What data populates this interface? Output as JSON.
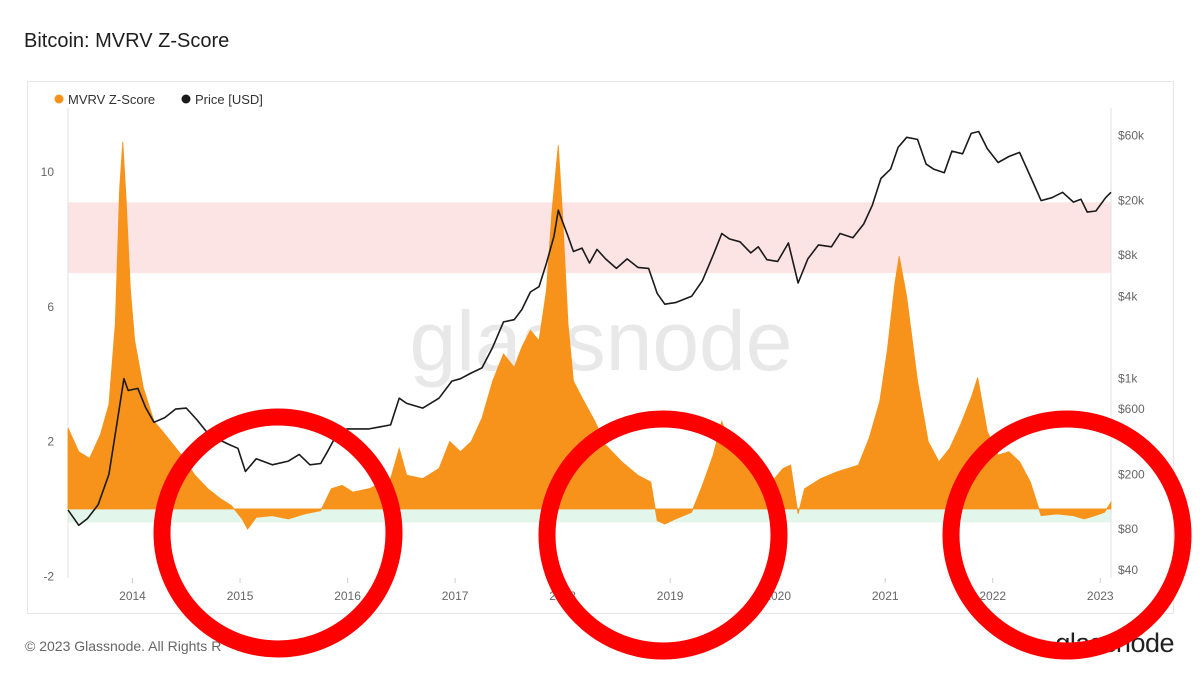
{
  "title": "Bitcoin: MVRV Z-Score",
  "watermark": "glassnode",
  "footer": {
    "copyright": "© 2023 Glassnode. All Rights R",
    "logo_text": "glassnode"
  },
  "colors": {
    "zscore": "#f7931a",
    "price": "#1a1a1a",
    "top_band": "#fde4e4",
    "bottom_band": "#e3f6ec",
    "annotation": "#ff0000",
    "axis_text": "#666666",
    "watermark": "#e8e8e8"
  },
  "chart_data": {
    "type": "area",
    "title": "Bitcoin: MVRV Z-Score",
    "legend": {
      "placement": "top-left",
      "entries": [
        {
          "name": "MVRV Z-Score",
          "color": "#f7931a"
        },
        {
          "name": "Price [USD]",
          "color": "#1a1a1a"
        }
      ]
    },
    "x_ticks": [
      "2014",
      "2015",
      "2016",
      "2017",
      "2018",
      "2019",
      "2020",
      "2021",
      "2022",
      "2023"
    ],
    "x_range": [
      2013.4,
      2023.1
    ],
    "y_left": {
      "ticks": [
        "10",
        "6",
        "2",
        "-2"
      ],
      "tick_values": [
        10,
        6,
        2,
        -2
      ],
      "range": [
        -2.05,
        11.9
      ]
    },
    "y_right": {
      "scale": "log",
      "ticks": [
        "$60k",
        "$20k",
        "$8k",
        "$4k",
        "$1k",
        "$600",
        "$200",
        "$80",
        "$40"
      ],
      "tick_values": [
        60000,
        20000,
        8000,
        4000,
        1000,
        600,
        200,
        80,
        40
      ],
      "range": [
        35,
        95000
      ]
    },
    "bands": [
      {
        "name": "top zone",
        "y_from": 7.0,
        "y_to": 9.1,
        "color": "#fde4e4"
      },
      {
        "name": "bottom zone",
        "y_from": -0.4,
        "y_to": 0.0,
        "color": "#e3f6ec"
      }
    ],
    "series": [
      {
        "name": "MVRV Z-Score",
        "type": "area",
        "points": [
          [
            2013.4,
            2.4
          ],
          [
            2013.5,
            1.7
          ],
          [
            2013.6,
            1.5
          ],
          [
            2013.7,
            2.2
          ],
          [
            2013.78,
            3.1
          ],
          [
            2013.84,
            5.5
          ],
          [
            2013.88,
            9.5
          ],
          [
            2013.91,
            10.9
          ],
          [
            2013.94,
            9.2
          ],
          [
            2013.98,
            6.5
          ],
          [
            2014.02,
            5.0
          ],
          [
            2014.1,
            3.6
          ],
          [
            2014.2,
            2.6
          ],
          [
            2014.28,
            2.3
          ],
          [
            2014.38,
            1.9
          ],
          [
            2014.48,
            1.5
          ],
          [
            2014.58,
            1.0
          ],
          [
            2014.7,
            0.6
          ],
          [
            2014.82,
            0.3
          ],
          [
            2014.92,
            0.1
          ],
          [
            2015.02,
            -0.3
          ],
          [
            2015.07,
            -0.6
          ],
          [
            2015.15,
            -0.25
          ],
          [
            2015.3,
            -0.2
          ],
          [
            2015.45,
            -0.3
          ],
          [
            2015.6,
            -0.15
          ],
          [
            2015.75,
            -0.05
          ],
          [
            2015.85,
            0.6
          ],
          [
            2015.95,
            0.7
          ],
          [
            2016.05,
            0.5
          ],
          [
            2016.2,
            0.6
          ],
          [
            2016.4,
            0.9
          ],
          [
            2016.48,
            1.8
          ],
          [
            2016.55,
            1.0
          ],
          [
            2016.7,
            0.9
          ],
          [
            2016.85,
            1.2
          ],
          [
            2016.95,
            2.0
          ],
          [
            2017.05,
            1.7
          ],
          [
            2017.15,
            2.0
          ],
          [
            2017.25,
            2.7
          ],
          [
            2017.35,
            3.8
          ],
          [
            2017.45,
            4.6
          ],
          [
            2017.55,
            4.2
          ],
          [
            2017.62,
            4.8
          ],
          [
            2017.7,
            5.3
          ],
          [
            2017.78,
            5.0
          ],
          [
            2017.85,
            6.5
          ],
          [
            2017.9,
            8.8
          ],
          [
            2017.96,
            10.8
          ],
          [
            2018.0,
            8.7
          ],
          [
            2018.05,
            5.5
          ],
          [
            2018.1,
            3.8
          ],
          [
            2018.18,
            3.3
          ],
          [
            2018.3,
            2.6
          ],
          [
            2018.4,
            1.9
          ],
          [
            2018.55,
            1.4
          ],
          [
            2018.7,
            1.0
          ],
          [
            2018.82,
            0.8
          ],
          [
            2018.88,
            -0.35
          ],
          [
            2018.95,
            -0.45
          ],
          [
            2019.05,
            -0.3
          ],
          [
            2019.2,
            -0.1
          ],
          [
            2019.3,
            0.7
          ],
          [
            2019.4,
            1.6
          ],
          [
            2019.48,
            2.6
          ],
          [
            2019.55,
            2.0
          ],
          [
            2019.65,
            1.7
          ],
          [
            2019.78,
            1.3
          ],
          [
            2019.88,
            1.0
          ],
          [
            2019.97,
            0.9
          ],
          [
            2020.05,
            1.2
          ],
          [
            2020.12,
            1.3
          ],
          [
            2020.19,
            -0.15
          ],
          [
            2020.25,
            0.6
          ],
          [
            2020.4,
            0.9
          ],
          [
            2020.55,
            1.1
          ],
          [
            2020.65,
            1.2
          ],
          [
            2020.75,
            1.3
          ],
          [
            2020.85,
            2.1
          ],
          [
            2020.95,
            3.2
          ],
          [
            2021.02,
            4.7
          ],
          [
            2021.09,
            6.7
          ],
          [
            2021.13,
            7.5
          ],
          [
            2021.2,
            6.3
          ],
          [
            2021.3,
            3.8
          ],
          [
            2021.4,
            2.0
          ],
          [
            2021.5,
            1.4
          ],
          [
            2021.6,
            1.8
          ],
          [
            2021.7,
            2.5
          ],
          [
            2021.8,
            3.3
          ],
          [
            2021.86,
            3.9
          ],
          [
            2021.95,
            2.3
          ],
          [
            2022.05,
            1.6
          ],
          [
            2022.15,
            1.7
          ],
          [
            2022.25,
            1.4
          ],
          [
            2022.35,
            0.8
          ],
          [
            2022.45,
            -0.2
          ],
          [
            2022.6,
            -0.15
          ],
          [
            2022.75,
            -0.2
          ],
          [
            2022.85,
            -0.3
          ],
          [
            2022.95,
            -0.2
          ],
          [
            2023.04,
            -0.1
          ],
          [
            2023.1,
            0.2
          ]
        ]
      },
      {
        "name": "Price [USD]",
        "type": "line",
        "points": [
          [
            2013.4,
            110
          ],
          [
            2013.5,
            85
          ],
          [
            2013.58,
            95
          ],
          [
            2013.68,
            120
          ],
          [
            2013.78,
            200
          ],
          [
            2013.86,
            500
          ],
          [
            2013.92,
            1000
          ],
          [
            2013.96,
            820
          ],
          [
            2014.05,
            850
          ],
          [
            2014.12,
            620
          ],
          [
            2014.2,
            480
          ],
          [
            2014.3,
            520
          ],
          [
            2014.4,
            600
          ],
          [
            2014.5,
            610
          ],
          [
            2014.6,
            500
          ],
          [
            2014.7,
            400
          ],
          [
            2014.8,
            360
          ],
          [
            2014.9,
            330
          ],
          [
            2014.98,
            310
          ],
          [
            2015.05,
            210
          ],
          [
            2015.15,
            260
          ],
          [
            2015.3,
            235
          ],
          [
            2015.45,
            250
          ],
          [
            2015.55,
            280
          ],
          [
            2015.65,
            235
          ],
          [
            2015.75,
            240
          ],
          [
            2015.82,
            300
          ],
          [
            2015.92,
            420
          ],
          [
            2016.0,
            430
          ],
          [
            2016.2,
            430
          ],
          [
            2016.4,
            460
          ],
          [
            2016.48,
            720
          ],
          [
            2016.55,
            660
          ],
          [
            2016.7,
            610
          ],
          [
            2016.85,
            720
          ],
          [
            2016.97,
            960
          ],
          [
            2017.05,
            1000
          ],
          [
            2017.15,
            1100
          ],
          [
            2017.25,
            1200
          ],
          [
            2017.35,
            1700
          ],
          [
            2017.45,
            2600
          ],
          [
            2017.55,
            2700
          ],
          [
            2017.62,
            3200
          ],
          [
            2017.7,
            4300
          ],
          [
            2017.78,
            4700
          ],
          [
            2017.85,
            7000
          ],
          [
            2017.92,
            11000
          ],
          [
            2017.96,
            17000
          ],
          [
            2018.0,
            14000
          ],
          [
            2018.05,
            11000
          ],
          [
            2018.1,
            8500
          ],
          [
            2018.18,
            9000
          ],
          [
            2018.25,
            7000
          ],
          [
            2018.32,
            8800
          ],
          [
            2018.4,
            7500
          ],
          [
            2018.5,
            6400
          ],
          [
            2018.6,
            7500
          ],
          [
            2018.7,
            6500
          ],
          [
            2018.8,
            6400
          ],
          [
            2018.88,
            4200
          ],
          [
            2018.95,
            3500
          ],
          [
            2019.05,
            3600
          ],
          [
            2019.2,
            4000
          ],
          [
            2019.3,
            5200
          ],
          [
            2019.4,
            8000
          ],
          [
            2019.48,
            11500
          ],
          [
            2019.55,
            10500
          ],
          [
            2019.65,
            10000
          ],
          [
            2019.75,
            8300
          ],
          [
            2019.82,
            9200
          ],
          [
            2019.9,
            7400
          ],
          [
            2020.0,
            7200
          ],
          [
            2020.1,
            9800
          ],
          [
            2020.19,
            5000
          ],
          [
            2020.28,
            7500
          ],
          [
            2020.38,
            9500
          ],
          [
            2020.5,
            9200
          ],
          [
            2020.58,
            11500
          ],
          [
            2020.7,
            10700
          ],
          [
            2020.8,
            13500
          ],
          [
            2020.88,
            18500
          ],
          [
            2020.96,
            29000
          ],
          [
            2021.05,
            34000
          ],
          [
            2021.12,
            49000
          ],
          [
            2021.2,
            58000
          ],
          [
            2021.3,
            56000
          ],
          [
            2021.38,
            37000
          ],
          [
            2021.45,
            34000
          ],
          [
            2021.55,
            32000
          ],
          [
            2021.62,
            46000
          ],
          [
            2021.72,
            44000
          ],
          [
            2021.8,
            62000
          ],
          [
            2021.87,
            64000
          ],
          [
            2021.95,
            48000
          ],
          [
            2022.05,
            38000
          ],
          [
            2022.15,
            42000
          ],
          [
            2022.25,
            45000
          ],
          [
            2022.35,
            30000
          ],
          [
            2022.45,
            20000
          ],
          [
            2022.55,
            21000
          ],
          [
            2022.65,
            23000
          ],
          [
            2022.75,
            19500
          ],
          [
            2022.82,
            20500
          ],
          [
            2022.88,
            16500
          ],
          [
            2022.96,
            16800
          ],
          [
            2023.05,
            21000
          ],
          [
            2023.1,
            23000
          ]
        ]
      }
    ]
  }
}
